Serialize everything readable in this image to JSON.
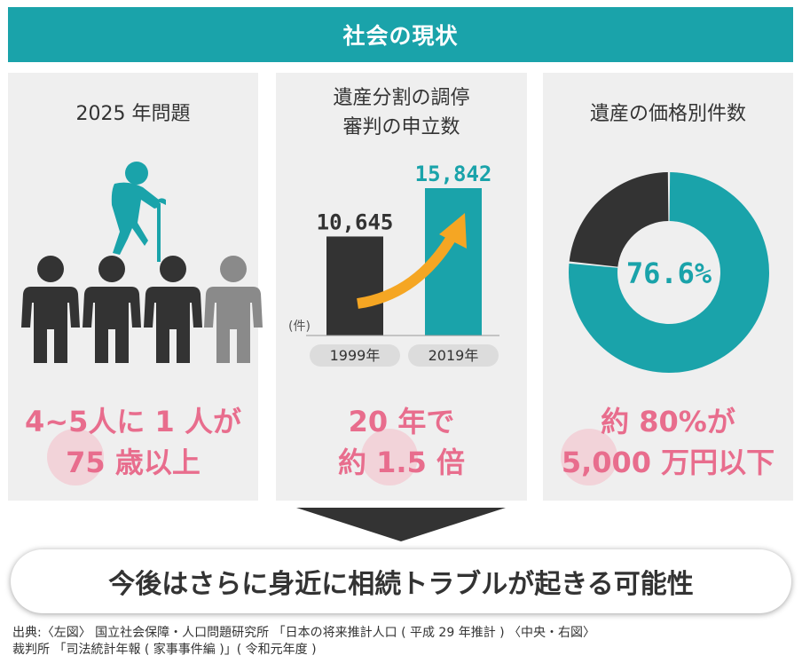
{
  "header": {
    "title": "社会の現状"
  },
  "panel_2025": {
    "title": "2025 年問題",
    "highlight_line1": "4~5人に 1 人が",
    "highlight_line2": "75 歳以上",
    "colors": {
      "elder": "#1aa3aa",
      "people": "#333333",
      "people_faded": "#8a8a8a"
    }
  },
  "panel_disputes": {
    "title_line1": "遺産分割の調停",
    "title_line2": "審判の申立数",
    "unit_label": "(件)",
    "highlight_line1": "20 年で",
    "highlight_line2": "約 1.5 倍"
  },
  "panel_estate": {
    "title": "遺産の価格別件数",
    "center_label": "76.6%",
    "highlight_line1": "約 80%が",
    "highlight_line2": "5,000 万円以下"
  },
  "conclusion": {
    "text": "今後はさらに身近に相続トラブルが起きる可能性"
  },
  "source": {
    "line1": "出典:〈左図〉 国立社会保障・人口問題研究所 「日本の将来推計人口 ( 平成 29 年推計 ) 〈中央・右図〉",
    "line2": "裁判所 「司法統計年報 ( 家事事件編 )」( 令和元年度 )"
  },
  "chart_data": [
    {
      "type": "bar",
      "categories": [
        "1999年",
        "2019年"
      ],
      "values": [
        10645,
        15842
      ],
      "value_labels": [
        "10,645",
        "15,842"
      ],
      "ylabel": "(件)",
      "colors": [
        "#333333",
        "#1aa3aa"
      ],
      "arrow_color": "#f5a623"
    },
    {
      "type": "pie",
      "slices": [
        {
          "value": 76.6,
          "color": "#1aa3aa"
        },
        {
          "value": 23.4,
          "color": "#333333"
        }
      ],
      "center_label": "76.6%"
    }
  ]
}
